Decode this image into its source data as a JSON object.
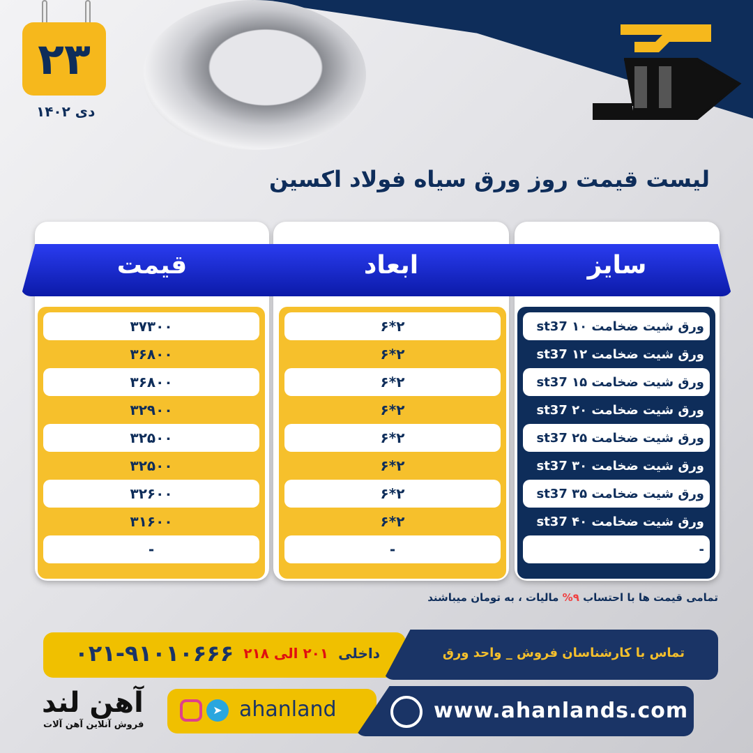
{
  "date": {
    "day": "۲۳",
    "month_year": "دی ۱۴۰۲"
  },
  "title": "لیست قیمت روز ورق سیاه فولاد اکسین",
  "headers": {
    "price": "قیمت",
    "dimensions": "ابعاد",
    "size": "سایز"
  },
  "rows": [
    {
      "size": "ورق شیت ضخامت ۱۰ st37",
      "dim": "۲*۶",
      "price": "۳۷۳۰۰"
    },
    {
      "size": "ورق شیت ضخامت ۱۲ st37",
      "dim": "۲*۶",
      "price": "۳۶۸۰۰"
    },
    {
      "size": "ورق شیت ضخامت ۱۵ st37",
      "dim": "۲*۶",
      "price": "۳۶۸۰۰"
    },
    {
      "size": "ورق شیت ضخامت ۲۰ st37",
      "dim": "۲*۶",
      "price": "۳۲۹۰۰"
    },
    {
      "size": "ورق شیت ضخامت ۲۵ st37",
      "dim": "۲*۶",
      "price": "۳۲۵۰۰"
    },
    {
      "size": "ورق شیت ضخامت ۳۰ st37",
      "dim": "۲*۶",
      "price": "۳۲۵۰۰"
    },
    {
      "size": "ورق شیت ضخامت ۳۵ st37",
      "dim": "۲*۶",
      "price": "۳۲۶۰۰"
    },
    {
      "size": "ورق شیت ضخامت ۴۰ st37",
      "dim": "۲*۶",
      "price": "۳۱۶۰۰"
    },
    {
      "size": "-",
      "dim": "-",
      "price": "-"
    }
  ],
  "note": {
    "before": "تمامی قیمت ها با احتساب",
    "tax": "۹%",
    "after": "مالیات ، به تومان میباشند"
  },
  "contact": {
    "label": "تماس با کارشناسان فروش _ واحد ورق",
    "ext_prefix": "داخلی",
    "ext_range": "۲۰۱ الی ۲۱۸",
    "phone": "۰۲۱-۹۱۰۱۰۶۶۶"
  },
  "social": {
    "handle": "ahanland",
    "website": "www.ahanlands.com"
  },
  "brand": {
    "name": "آهن لند",
    "tagline": "فروش آنلاین آهن آلات"
  },
  "colors": {
    "navy": "#0e2d5a",
    "yellow": "#f6b81c",
    "blue": "#1a2ad0",
    "red": "#e01010"
  }
}
